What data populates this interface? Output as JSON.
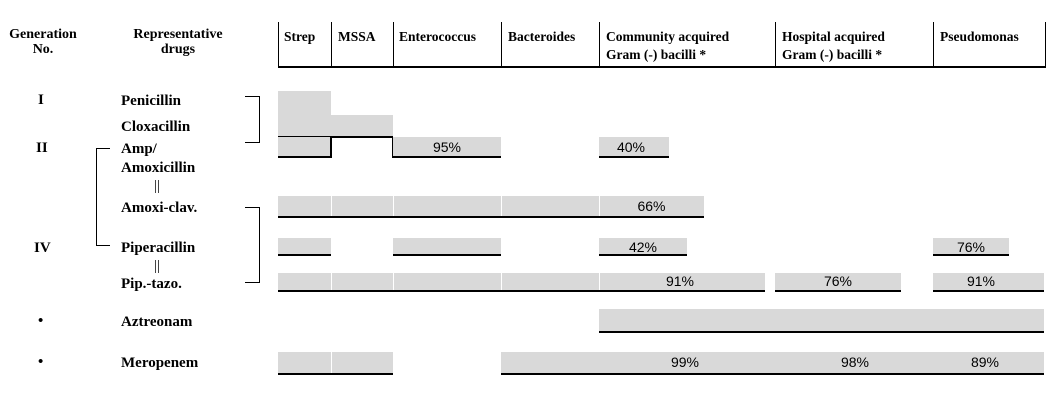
{
  "header": {
    "generation_label": [
      "Generation",
      "No."
    ],
    "drugs_label": [
      "Representative",
      "drugs"
    ],
    "columns": [
      [
        "Strep"
      ],
      [
        "MSSA"
      ],
      [
        "Enterococcus"
      ],
      [
        "Bacteroides"
      ],
      [
        "Community acquired",
        "Gram (-) bacilli *"
      ],
      [
        "Hospital acquired",
        "Gram (-) bacilli *"
      ],
      [
        "Pseudomonas"
      ]
    ]
  },
  "generations": [
    "I",
    "II",
    "IV",
    "•",
    "•"
  ],
  "drugs": {
    "penicillin": "Penicillin",
    "cloxacillin": "Cloxacillin",
    "amp": "Amp/",
    "amoxicillin": "Amoxicillin",
    "amoxi_clav": "Amoxi-clav.",
    "piperacillin": "Piperacillin",
    "pip_tazo": "Pip.-tazo.",
    "aztreonam": "Aztreonam",
    "meropenem": "Meropenem"
  },
  "equivalence_symbol": "||",
  "coverage": {
    "amoxicillin_enterococcus": "95%",
    "amoxicillin_community": "40%",
    "amoxi_clav_community": "66%",
    "piperacillin_community": "42%",
    "piperacillin_pseudomonas": "76%",
    "pip_tazo_community": "91%",
    "pip_tazo_hospital": "76%",
    "pip_tazo_pseudomonas": "91%",
    "meropenem_community": "99%",
    "meropenem_hospital": "98%",
    "meropenem_pseudomonas": "89%"
  },
  "colors": {
    "bar": "#d9d9d9",
    "line": "#000000"
  }
}
